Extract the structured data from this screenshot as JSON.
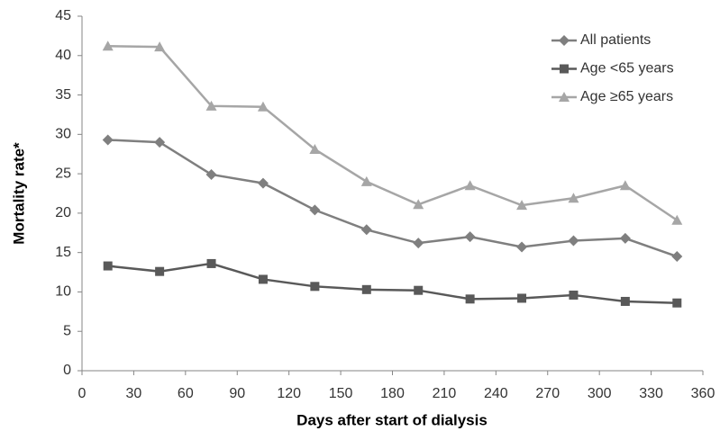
{
  "chart_data": {
    "type": "line",
    "x_label": "Days after start of dialysis",
    "y_label": "Mortality rate*",
    "x": [
      15,
      45,
      75,
      105,
      135,
      165,
      195,
      225,
      255,
      285,
      315,
      345
    ],
    "series": [
      {
        "name": "All patients",
        "color": "#7f7f7f",
        "marker": "diamond",
        "values": [
          29.3,
          29.0,
          24.9,
          23.8,
          20.4,
          17.9,
          16.2,
          17.0,
          15.7,
          16.5,
          16.8,
          14.5
        ]
      },
      {
        "name": "Age <65 years",
        "color": "#595959",
        "marker": "square",
        "values": [
          13.3,
          12.6,
          13.6,
          11.6,
          10.7,
          10.3,
          10.2,
          9.1,
          9.2,
          9.6,
          8.8,
          8.6
        ]
      },
      {
        "name": "Age ≥65 years",
        "color": "#a6a6a6",
        "marker": "triangle",
        "values": [
          41.2,
          41.1,
          33.6,
          33.5,
          28.1,
          24.0,
          21.1,
          23.5,
          21.0,
          21.9,
          23.5,
          19.1
        ]
      }
    ],
    "xlim": [
      0,
      360
    ],
    "xticks": [
      0,
      30,
      60,
      90,
      120,
      150,
      180,
      210,
      240,
      270,
      300,
      330,
      360
    ],
    "ylim": [
      0,
      45
    ],
    "yticks": [
      0,
      5,
      10,
      15,
      20,
      25,
      30,
      35,
      40,
      45
    ],
    "grid": false,
    "legend": "top-right"
  }
}
